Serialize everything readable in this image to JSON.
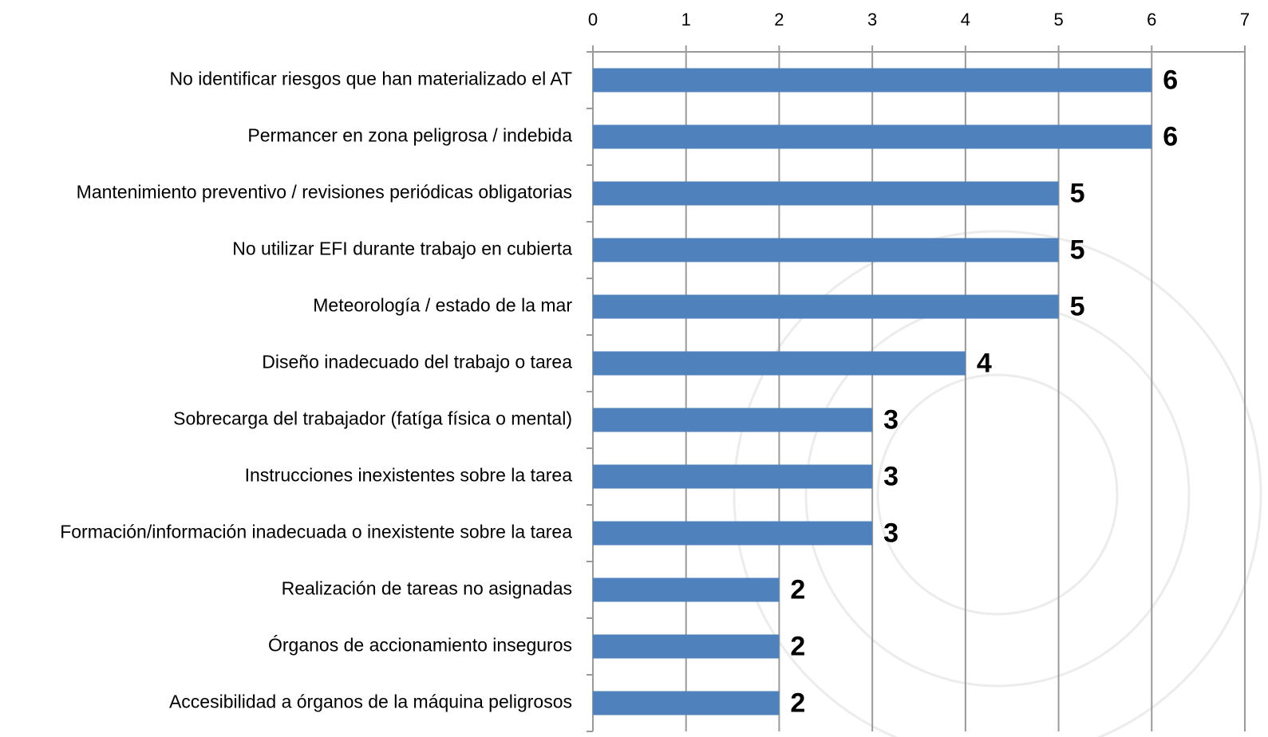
{
  "chart_data": {
    "type": "bar",
    "orientation": "horizontal",
    "categories": [
      "No identificar riesgos que han materializado el AT",
      "Permancer en zona peligrosa / indebida",
      "Mantenimiento preventivo / revisiones periódicas obligatorias",
      "No utilizar EFI durante trabajo en cubierta",
      "Meteorología / estado de la mar",
      "Diseño inadecuado del trabajo o tarea",
      "Sobrecarga del trabajador (fatíga física o mental)",
      "Instrucciones inexistentes sobre la tarea",
      "Formación/información inadecuada o inexistente sobre la tarea",
      "Realización de tareas no asignadas",
      "Órganos de accionamiento inseguros",
      "Accesibilidad a órganos de la máquina peligrosos"
    ],
    "values": [
      6,
      6,
      5,
      5,
      5,
      4,
      3,
      3,
      3,
      2,
      2,
      2
    ],
    "color": "#4f81bd",
    "xlim": [
      0,
      7
    ],
    "xticks": [
      0,
      1,
      2,
      3,
      4,
      5,
      6,
      7
    ],
    "grid": true,
    "data_labels": true
  }
}
